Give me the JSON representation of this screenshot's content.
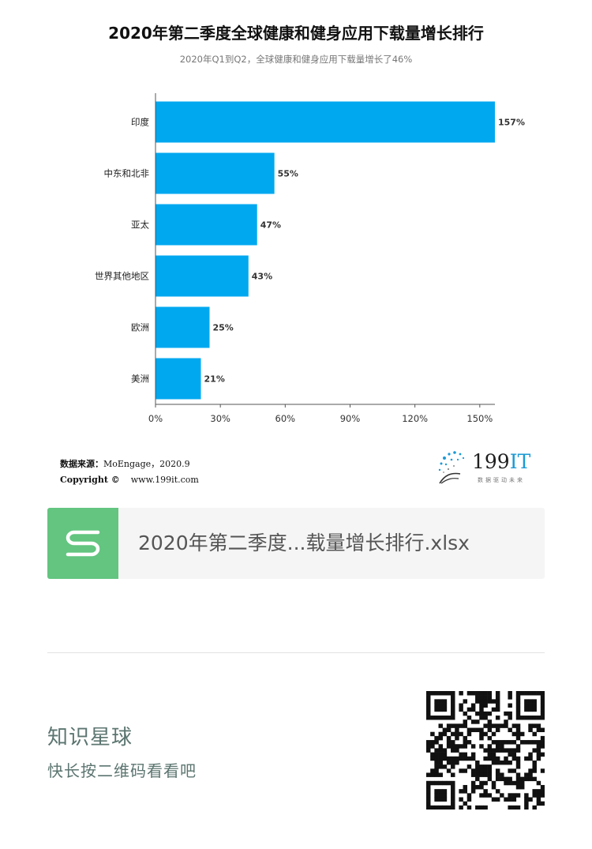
{
  "header": {
    "title": "2020年第二季度全球健康和健身应用下载量增长排行",
    "subtitle": "2020年Q1到Q2，全球健康和健身应用下载量增长了46%"
  },
  "chart_data": {
    "type": "bar",
    "orientation": "horizontal",
    "title": "2020年第二季度全球健康和健身应用下载量增长排行",
    "subtitle": "2020年Q1到Q2，全球健康和健身应用下载量增长了46%",
    "categories": [
      "印度",
      "中东和北非",
      "亚太",
      "世界其他地区",
      "欧洲",
      "美洲"
    ],
    "values": [
      157,
      55,
      47,
      43,
      25,
      21
    ],
    "data_labels": [
      "157%",
      "55%",
      "47%",
      "43%",
      "25%",
      "21%"
    ],
    "xlim": [
      0,
      157
    ],
    "x_ticks": [
      0,
      30,
      60,
      90,
      120,
      150
    ],
    "x_tick_labels": [
      "0%",
      "30%",
      "60%",
      "90%",
      "120%",
      "150%"
    ],
    "xlabel": "",
    "ylabel": "",
    "bar_color": "#00a8f0",
    "grid": false,
    "legend": "none"
  },
  "source": {
    "label": "数据来源：",
    "text": "MoEngage，2020.9",
    "copyright_label": "Copyright ©",
    "site": "www.199it.com"
  },
  "brand": {
    "name_num": "199",
    "name_it": "IT",
    "tagline": "数据驱动未来"
  },
  "file_card": {
    "filename": "2020年第二季度...载量增长排行.xlsx",
    "icon": "spreadsheet-s-icon",
    "color": "#63c580"
  },
  "footer": {
    "title": "知识星球",
    "subtitle": "快长按二维码看看吧"
  },
  "colors": {
    "accent": "#00a8f0",
    "brand_blue": "#1a9ad6",
    "footer_text": "#5c7570"
  }
}
